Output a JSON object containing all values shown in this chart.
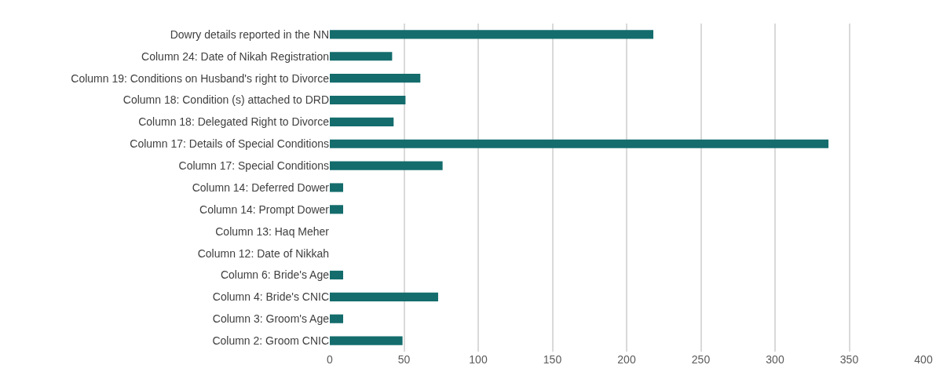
{
  "chart_data": {
    "type": "bar",
    "orientation": "horizontal",
    "categories": [
      "Dowry details reported in the NN",
      "Column 24: Date of Nikah Registration",
      "Column 19: Conditions on Husband's right to Divorce",
      "Column 18: Condition (s) attached to DRD",
      "Column 18: Delegated Right to Divorce",
      "Column 17: Details of Special Conditions",
      "Column 17: Special Conditions",
      "Column 14: Deferred Dower",
      "Column 14: Prompt Dower",
      "Column 13: Haq Meher",
      "Column 12: Date of Nikkah",
      "Column 6: Bride's Age",
      "Column 4: Bride's CNIC",
      "Column 3: Groom's Age",
      "Column 2: Groom CNIC"
    ],
    "values": [
      218,
      42,
      61,
      51,
      43,
      336,
      76,
      9,
      9,
      0,
      0,
      9,
      73,
      9,
      49
    ],
    "color": "#146c6c",
    "xlim": [
      0,
      400
    ],
    "xticks": [
      0,
      50,
      100,
      150,
      200,
      250,
      300,
      350,
      400
    ],
    "grid": "x"
  }
}
